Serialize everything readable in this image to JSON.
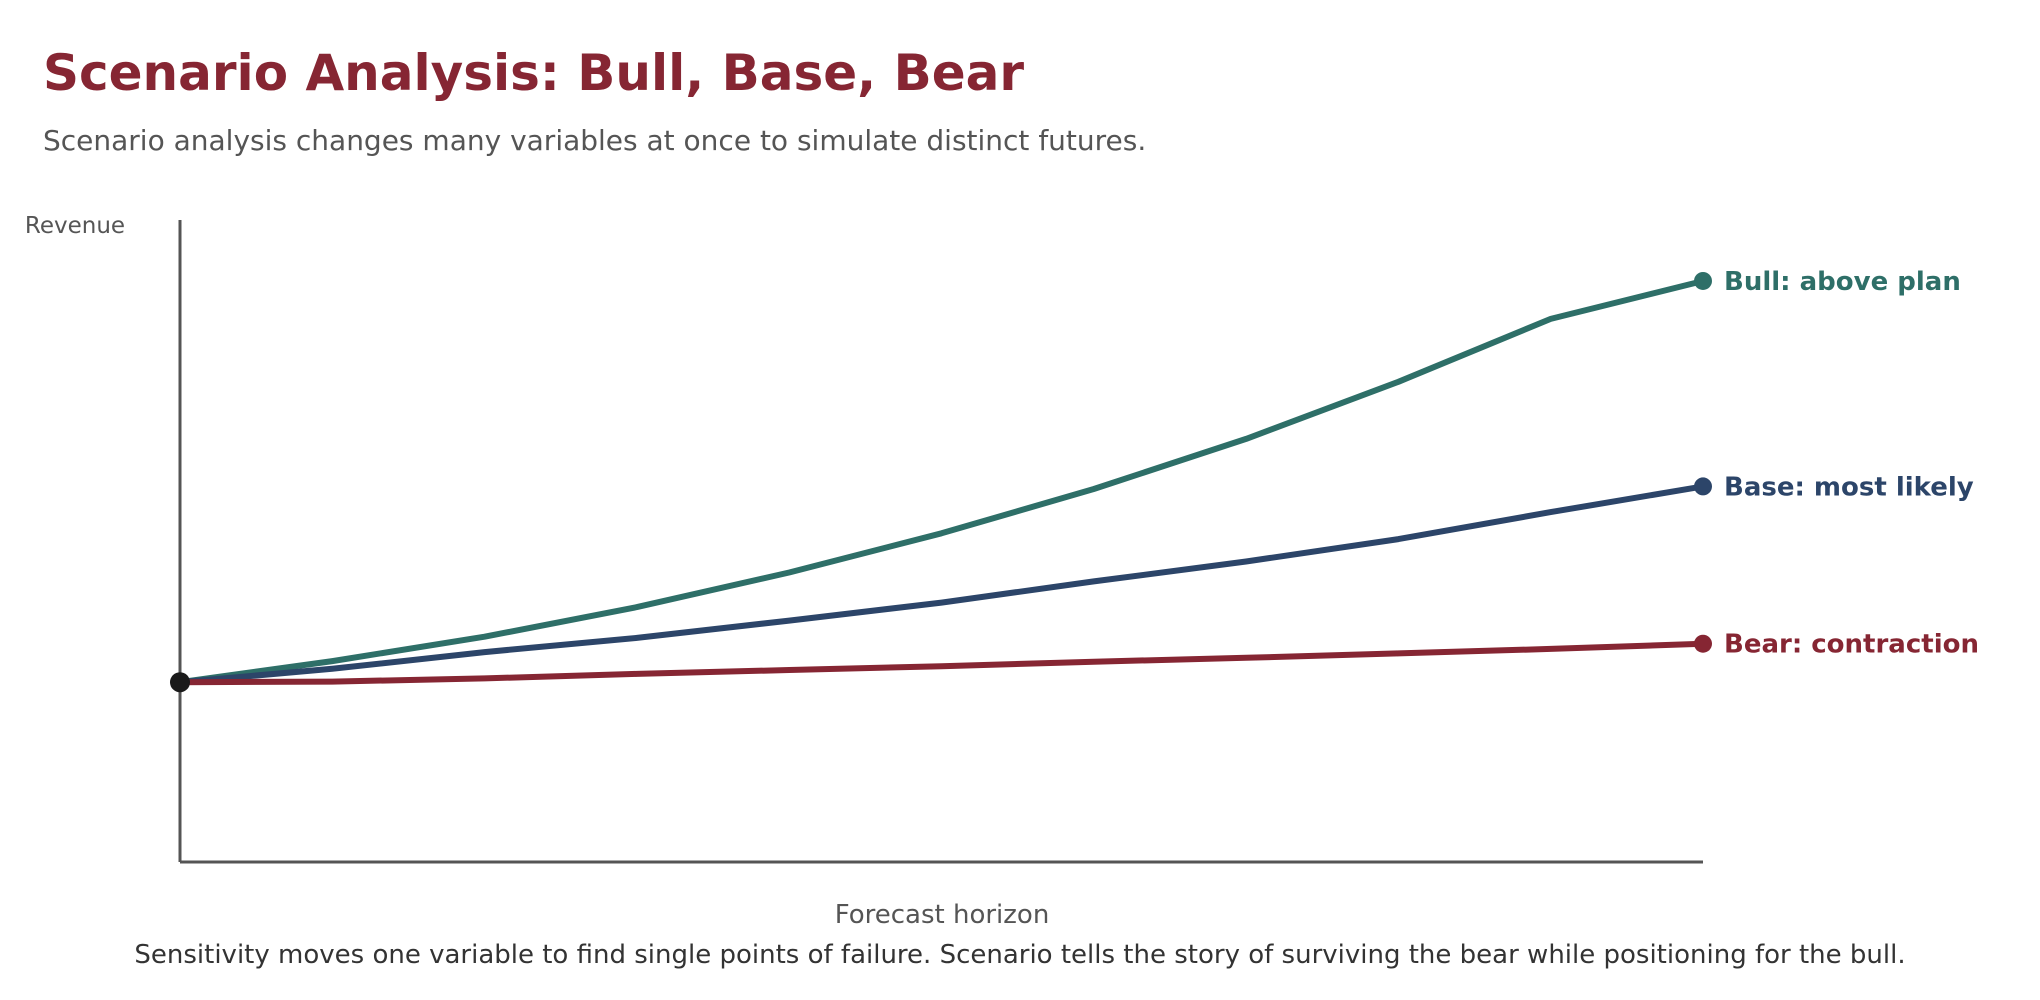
{
  "header": {
    "title": "Scenario Analysis: Bull, Base, Bear",
    "subtitle": "Scenario analysis changes many variables at once to simulate distinct futures."
  },
  "footer": {
    "note": "Sensitivity moves one variable to find single points of failure. Scenario tells the story of surviving the bear while positioning for the bull."
  },
  "colors": {
    "bull": "#2e6f68",
    "base": "#2c4569",
    "bear": "#862633",
    "axis": "#555555",
    "origin": "#1a1a1a"
  },
  "chart_data": {
    "type": "line",
    "xlabel": "Forecast horizon",
    "ylabel": "Revenue",
    "xlim": [
      0,
      10
    ],
    "ylim": [
      0,
      100
    ],
    "grid": false,
    "legend": "direct labels at line ends",
    "x": [
      0,
      1,
      2,
      3,
      4,
      5,
      6,
      7,
      8,
      9,
      10
    ],
    "series": [
      {
        "key": "bull",
        "name": "Bull: above plan",
        "values": [
          28,
          31.3,
          35.1,
          39.7,
          45.1,
          51.2,
          58.1,
          65.9,
          74.8,
          84.6,
          90.5
        ]
      },
      {
        "key": "base",
        "name": "Base: most likely",
        "values": [
          28,
          30.1,
          32.7,
          34.9,
          37.6,
          40.4,
          43.7,
          46.8,
          50.3,
          54.5,
          58.5
        ]
      },
      {
        "key": "bear",
        "name": "Bear: contraction",
        "values": [
          28,
          28.1,
          28.6,
          29.3,
          29.9,
          30.5,
          31.2,
          31.8,
          32.5,
          33.2,
          34
        ]
      }
    ]
  }
}
